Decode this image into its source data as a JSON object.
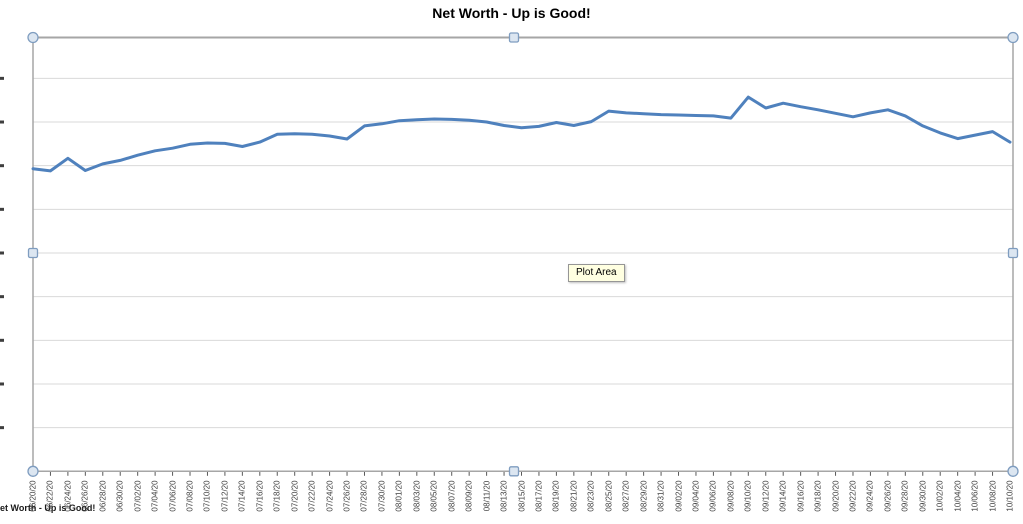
{
  "chart_data": {
    "type": "line",
    "title": "Net Worth - Up is Good!",
    "xlabel": "",
    "ylabel": "",
    "legend": "none",
    "grid": "horizontal",
    "ylim": [
      0,
      10
    ],
    "y_gridline_step": 1,
    "y_axis_labels_visible": false,
    "note": "y-axis numeric labels are cropped off the left edge of the screenshot; values below are expressed in gridline units (0 = x-axis, 1 per horizontal gridline)",
    "categories": [
      "06/20/20",
      "06/22/20",
      "06/24/20",
      "06/26/20",
      "06/28/20",
      "06/30/20",
      "07/02/20",
      "07/04/20",
      "07/06/20",
      "07/08/20",
      "07/10/20",
      "07/12/20",
      "07/14/20",
      "07/16/20",
      "07/18/20",
      "07/20/20",
      "07/22/20",
      "07/24/20",
      "07/26/20",
      "07/28/20",
      "07/30/20",
      "08/01/20",
      "08/03/20",
      "08/05/20",
      "08/07/20",
      "08/09/20",
      "08/11/20",
      "08/13/20",
      "08/15/20",
      "08/17/20",
      "08/19/20",
      "08/21/20",
      "08/23/20",
      "08/25/20",
      "08/27/20",
      "08/29/20",
      "08/31/20",
      "09/02/20",
      "09/04/20",
      "09/06/20",
      "09/08/20",
      "09/10/20",
      "09/12/20",
      "09/14/20",
      "09/16/20",
      "09/18/20",
      "09/20/20",
      "09/22/20",
      "09/24/20",
      "09/26/20",
      "09/28/20",
      "09/30/20",
      "10/02/20",
      "10/04/20",
      "10/06/20",
      "10/08/20",
      "10/10/20"
    ],
    "values": [
      6.93,
      6.88,
      7.17,
      6.89,
      7.04,
      7.12,
      7.24,
      7.34,
      7.4,
      7.49,
      7.52,
      7.51,
      7.44,
      7.54,
      7.72,
      7.73,
      7.72,
      7.68,
      7.61,
      7.91,
      7.96,
      8.03,
      8.05,
      8.07,
      8.06,
      8.04,
      8.0,
      7.92,
      7.87,
      7.9,
      7.99,
      7.92,
      8.01,
      8.25,
      8.21,
      8.19,
      8.17,
      8.16,
      8.15,
      8.14,
      8.09,
      8.57,
      8.32,
      8.43,
      8.35,
      8.28,
      8.2,
      8.12,
      8.21,
      8.28,
      8.14,
      7.91,
      7.75,
      7.62,
      7.7,
      7.78,
      7.54
    ]
  },
  "tooltip": {
    "label": "Plot Area"
  },
  "footer": {
    "partial_text": "et Worth - Up is Good!"
  },
  "colors": {
    "series_line": "#4F81BD",
    "gridline": "#D9D9D9",
    "axis_border": "#A6A6A6",
    "tick": "#595959",
    "handle_fill": "#DCE6F1",
    "handle_border": "#7F9DC0",
    "tooltip_bg": "#FFFFE1",
    "tooltip_border": "#969696"
  }
}
